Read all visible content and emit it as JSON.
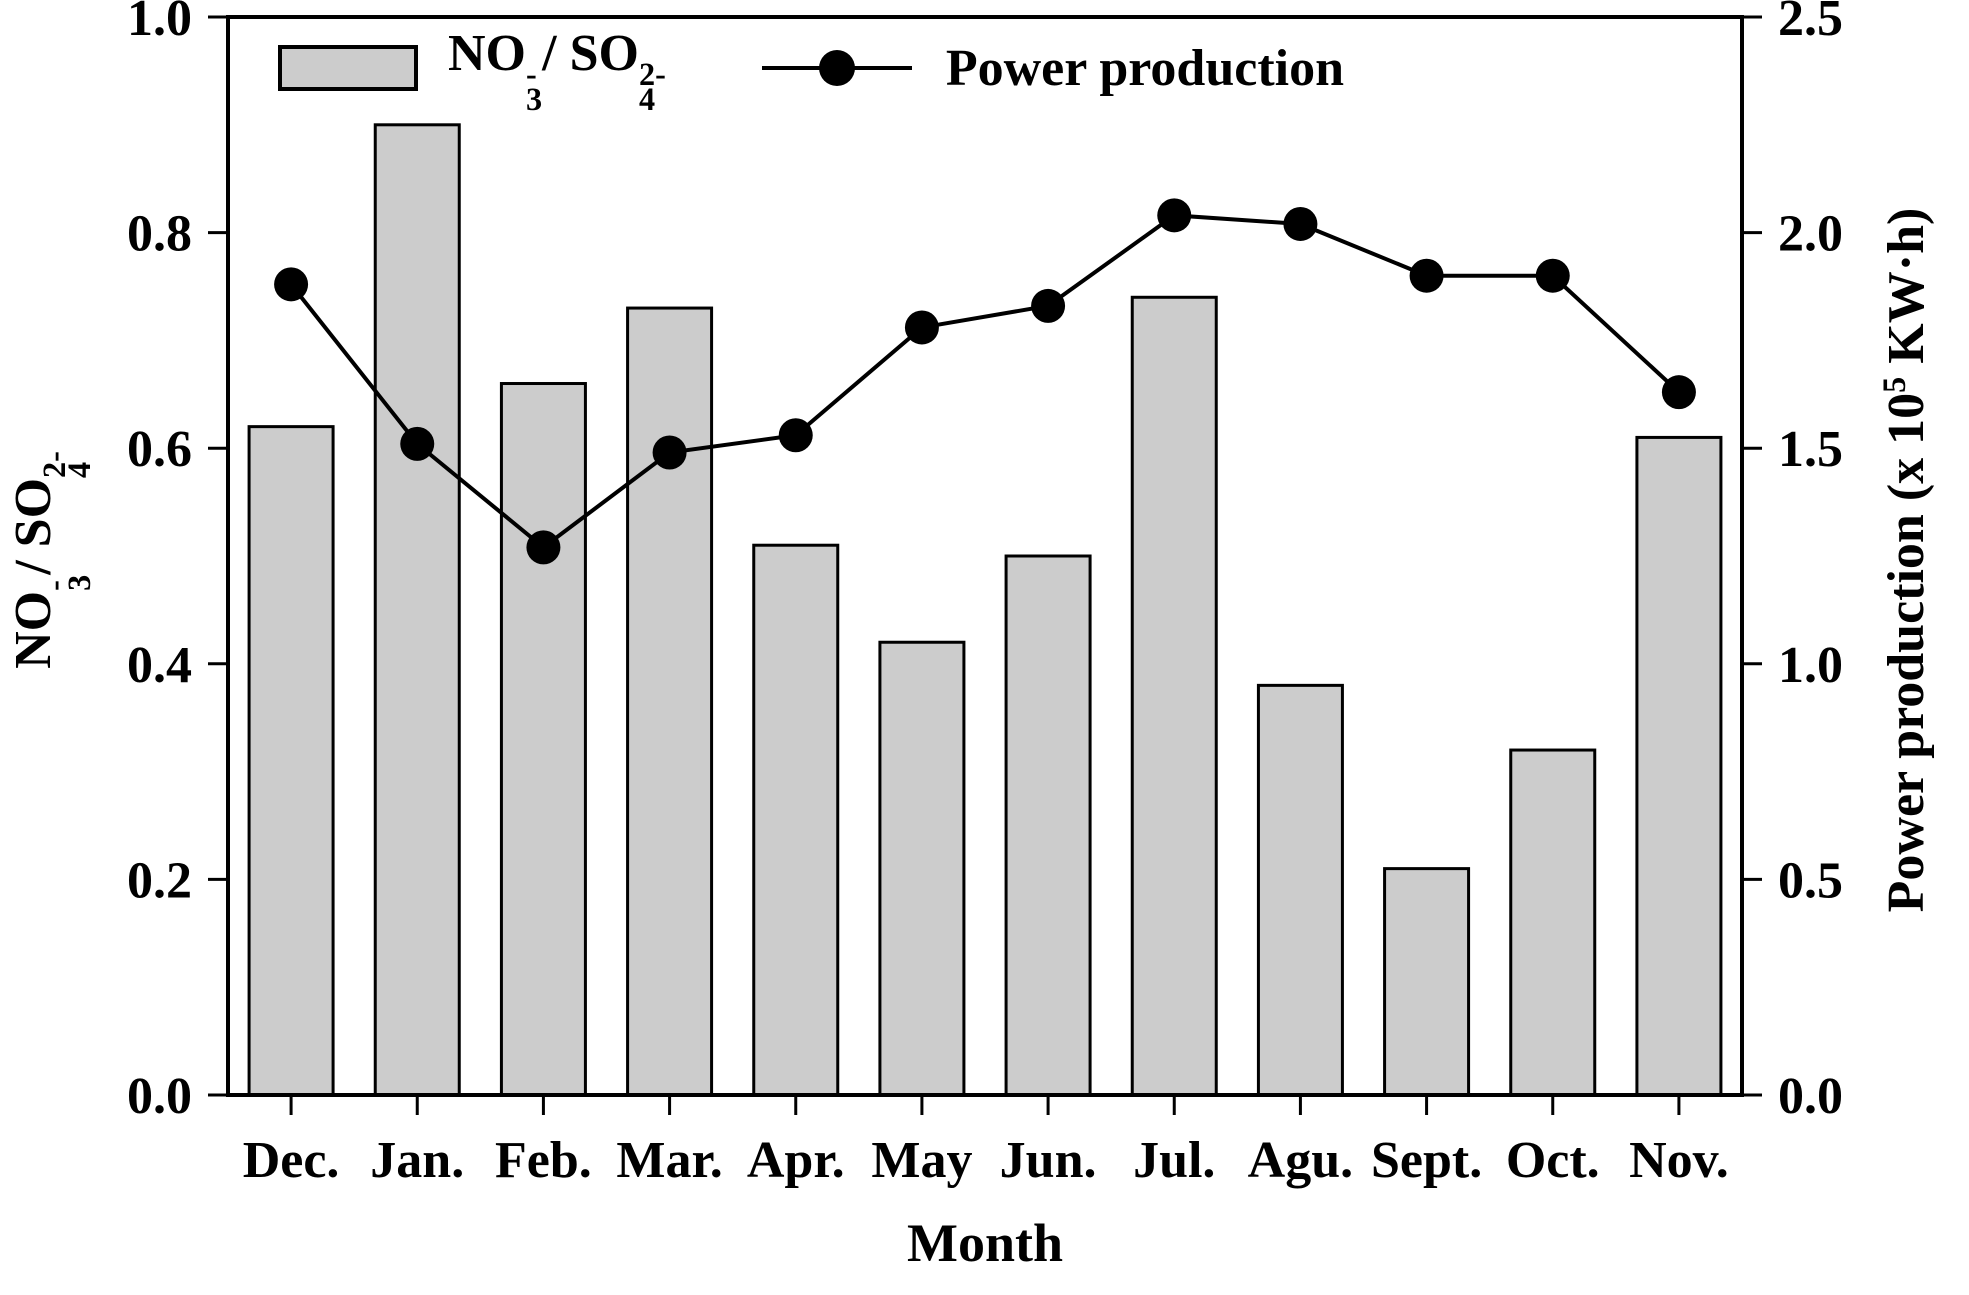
{
  "figure": {
    "x_axis_title": "Month",
    "right_axis_title_parts": {
      "base1": "Power production (x 10",
      "sup1": "5",
      "base2": " KW·h)"
    },
    "legend": {
      "line_series_label": "Power production"
    },
    "colors": {
      "background": "#ffffff",
      "bar_fill": "#cccccc",
      "bar_stroke": "#000000",
      "line_color": "#000000",
      "marker_color": "#000000",
      "axis_color": "#000000"
    }
  },
  "formulas": {
    "ratio": {
      "base1": "NO",
      "sub1": "3",
      "sup1": "-",
      "base2": "/ SO",
      "sub2": "4",
      "sup2": "2-"
    }
  },
  "chart_data": {
    "type": "bar+line",
    "title": "",
    "categories": [
      "Dec.",
      "Jan.",
      "Feb.",
      "Mar.",
      "Apr.",
      "May",
      "Jun.",
      "Jul.",
      "Agu.",
      "Sept.",
      "Oct.",
      "Nov."
    ],
    "series": [
      {
        "name": "NO3-/SO4 2- ratio",
        "type": "bar",
        "axis": "left",
        "values": [
          0.62,
          0.9,
          0.66,
          0.73,
          0.51,
          0.42,
          0.5,
          0.74,
          0.38,
          0.21,
          0.32,
          0.61
        ]
      },
      {
        "name": "Power production",
        "type": "line",
        "axis": "right",
        "values": [
          1.88,
          1.51,
          1.27,
          1.49,
          1.53,
          1.78,
          1.83,
          2.04,
          2.02,
          1.9,
          1.9,
          1.63
        ]
      }
    ],
    "left_axis": {
      "label": "NO3-/SO4 2-",
      "range": [
        0,
        1.0
      ],
      "ticks": [
        "0.0",
        "0.2",
        "0.4",
        "0.6",
        "0.8",
        "1.0"
      ]
    },
    "right_axis": {
      "label": "Power production (x 10^5 KW·h)",
      "range": [
        0,
        2.5
      ],
      "ticks": [
        "0.0",
        "0.5",
        "1.0",
        "1.5",
        "2.0",
        "2.5"
      ]
    },
    "x_axis": {
      "label": "Month"
    },
    "grid": false,
    "legend_position": "top-inside"
  }
}
